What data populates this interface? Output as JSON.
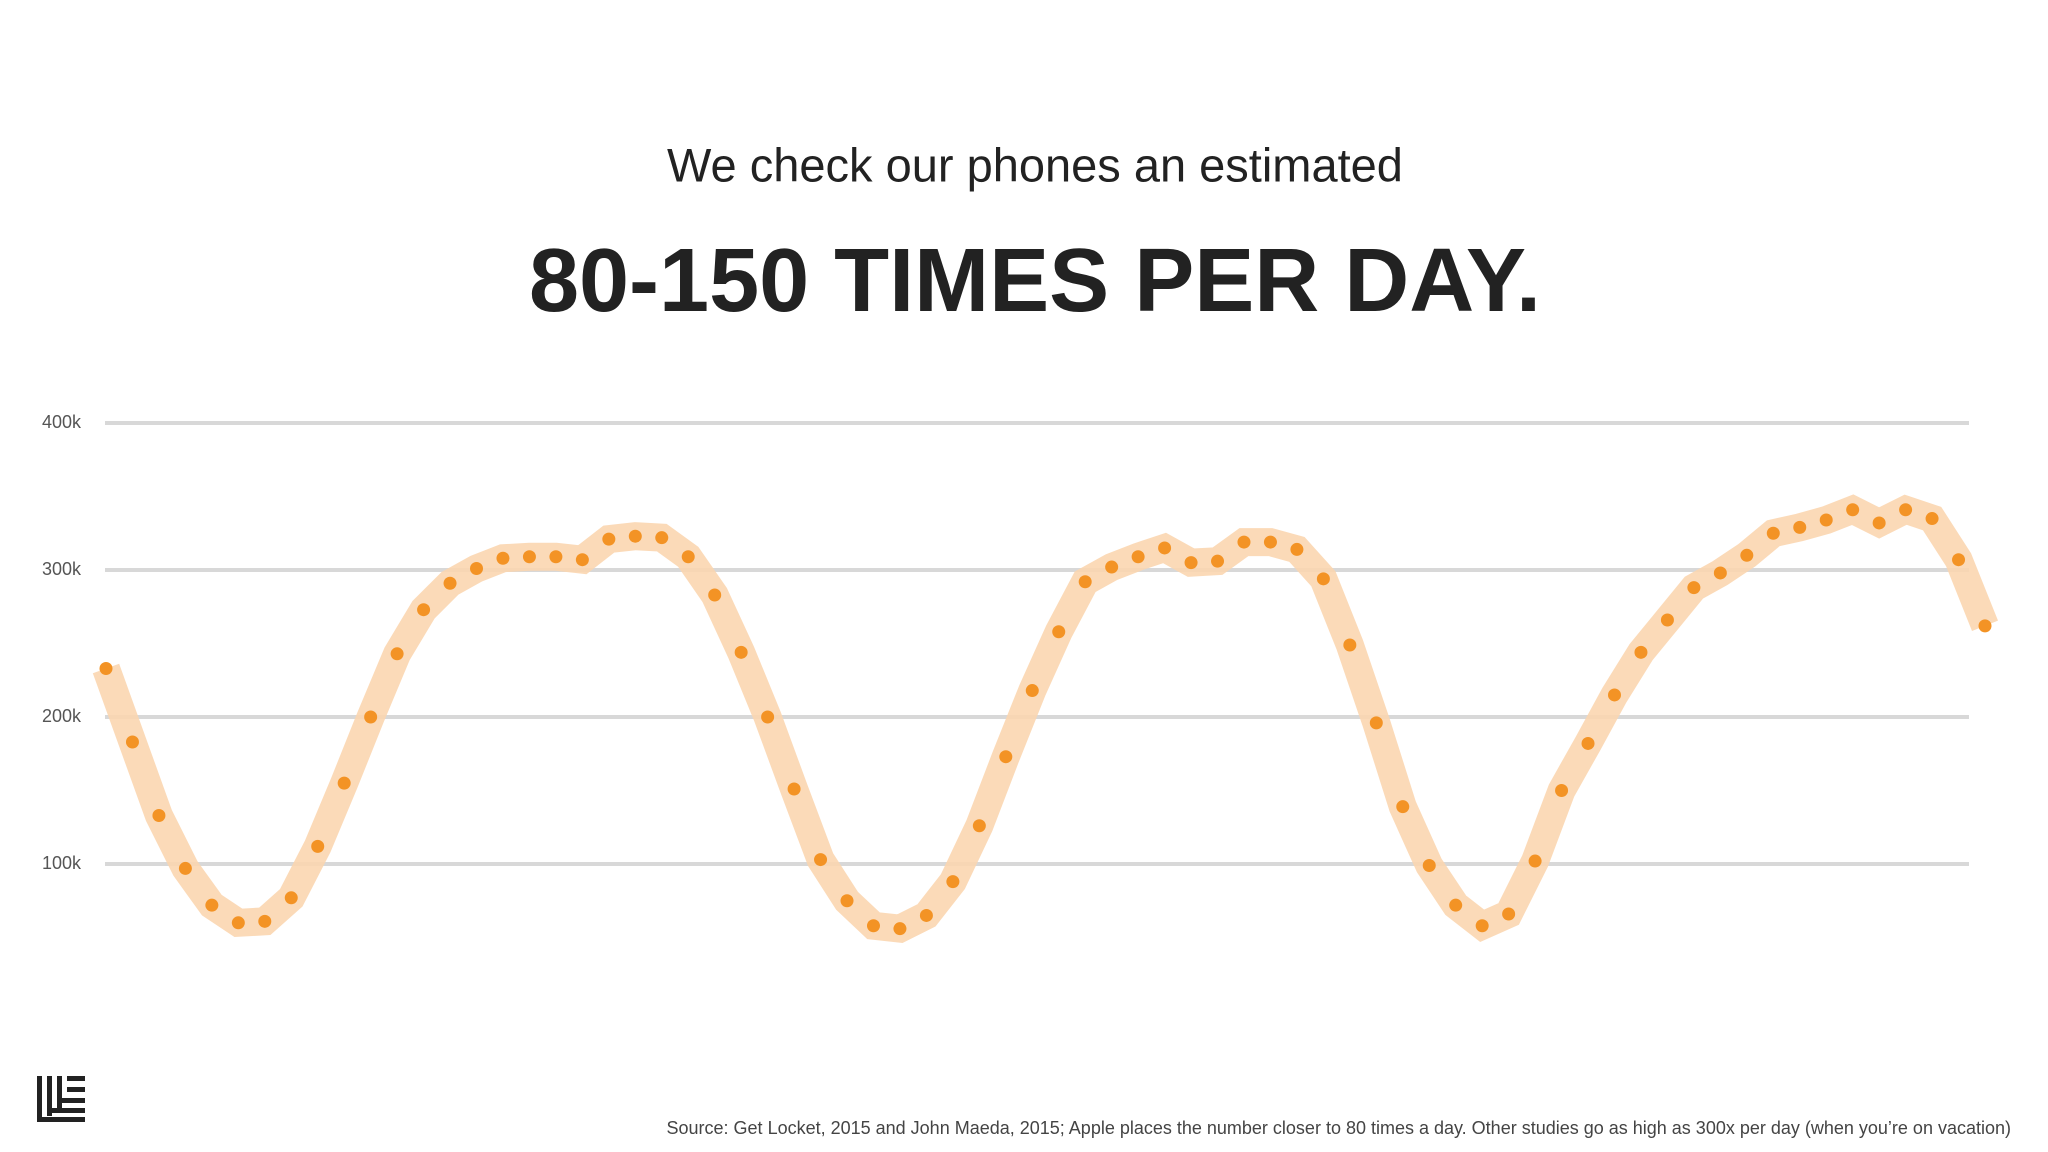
{
  "chart_data": {
    "type": "line",
    "subtitle": "We check our phones an estimated",
    "title": "80-150 TIMES PER DAY.",
    "source": "Source: Get Locket, 2015 and John Maeda, 2015; Apple places the number closer to 80 times a day. Other studies go as high as 300x per day (when you’re on vacation)",
    "color": "#f39325",
    "band_color": "#fbd6b0",
    "grid": true,
    "ylim": [
      0,
      400000
    ],
    "yticks": [
      {
        "value": 100000,
        "label": "100k"
      },
      {
        "value": 200000,
        "label": "200k"
      },
      {
        "value": 300000,
        "label": "300k"
      },
      {
        "value": 400000,
        "label": "400k"
      }
    ],
    "values": [
      233000,
      183000,
      133000,
      97000,
      72000,
      60000,
      61000,
      77000,
      112000,
      155000,
      200000,
      243000,
      273000,
      291000,
      301000,
      308000,
      309000,
      309000,
      307000,
      321000,
      323000,
      322000,
      309000,
      283000,
      244000,
      200000,
      151000,
      103000,
      75000,
      58000,
      56000,
      65000,
      88000,
      126000,
      173000,
      218000,
      258000,
      292000,
      302000,
      309000,
      315000,
      305000,
      306000,
      319000,
      319000,
      314000,
      294000,
      249000,
      196000,
      139000,
      99000,
      72000,
      58000,
      66000,
      102000,
      150000,
      182000,
      215000,
      244000,
      266000,
      288000,
      298000,
      310000,
      325000,
      329000,
      334000,
      341000,
      332000,
      341000,
      335000,
      307000,
      262000
    ]
  }
}
